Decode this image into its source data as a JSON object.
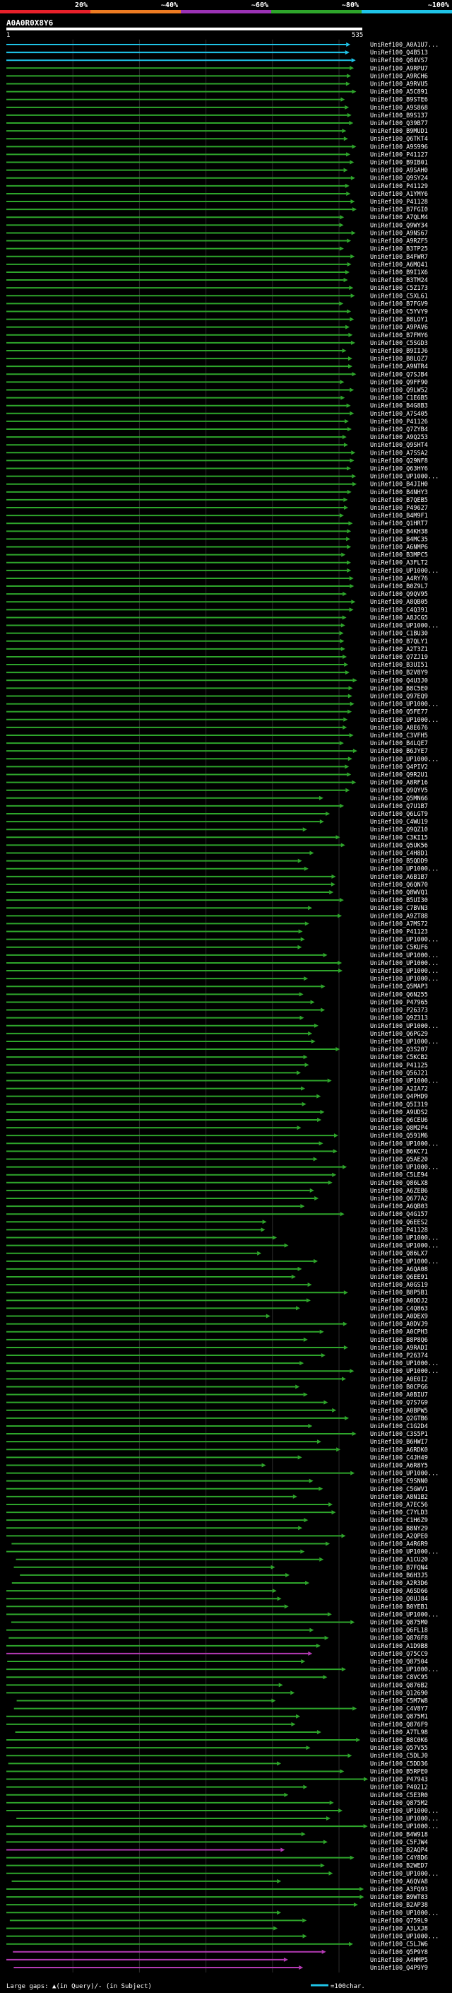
{
  "chart_data": {
    "type": "alignment-overview",
    "query_id": "A0A0R0X8Y6",
    "query_length": 535,
    "query_start_label": "1",
    "identity_scale": [
      {
        "label": "20%",
        "color": "#e8202a"
      },
      {
        "label": "~40%",
        "color": "#ee7b22"
      },
      {
        "label": "~60%",
        "color": "#9b32b5"
      },
      {
        "label": "~80%",
        "color": "#2ea52b"
      },
      {
        "label": "~100%",
        "color": "#1fc4e8"
      }
    ],
    "footer_left": "Large gaps: ▲(in Query)/- (in Subject)",
    "footer_right": "=100char.",
    "hits": [
      "UniRef100_A0A1U7...",
      "UniRef100_Q4B513",
      "UniRef100_Q84VS7",
      "UniRef100_A9RPU7",
      "UniRef100_A9RCH6",
      "UniRef100_A9RVU5",
      "UniRef100_A5C891",
      "UniRef100_B9STE6",
      "UniRef100_A9S868",
      "UniRef100_B9S137",
      "UniRef100_Q39B77",
      "UniRef100_B9MUD1",
      "UniRef100_Q6TKT4",
      "UniRef100_A9S996",
      "UniRef100_P41127",
      "UniRef100_B9IB01",
      "UniRef100_A9SAH0",
      "UniRef100_Q9SY24",
      "UniRef100_P41129",
      "UniRef100_A1YMY6",
      "UniRef100_P41128",
      "UniRef100_B7FGI0",
      "UniRef100_A7QLM4",
      "UniRef100_Q9WY34",
      "UniRef100_A9NS67",
      "UniRef100_A9RZF5",
      "UniRef100_B3TP25",
      "UniRef100_B4FWR7",
      "UniRef100_A6MQ41",
      "UniRef100_B9I1X6",
      "UniRef100_B3TM24",
      "UniRef100_C5Z173",
      "UniRef100_C5XL61",
      "UniRef100_B7FGV9",
      "UniRef100_C5YVY9",
      "UniRef100_B8LOY1",
      "UniRef100_A9PAV6",
      "UniRef100_B7FMY6",
      "UniRef100_C5SGD3",
      "UniRef100_B9IIJ6",
      "UniRef100_B8LQZ7",
      "UniRef100_A9NTR4",
      "UniRef100_Q7SJB4",
      "UniRef100_Q9FF90",
      "UniRef100_Q9LW52",
      "UniRef100_C1E6B5",
      "UniRef100_B4G8B3",
      "UniRef100_A7S405",
      "UniRef100_P41126",
      "UniRef100_Q7ZYB4",
      "UniRef100_A9Q253",
      "UniRef100_Q9SHT4",
      "UniRef100_A7SSA2",
      "UniRef100_Q29NF8",
      "UniRef100_Q63HY6",
      "UniRef100_UP1000...",
      "UniRef100_B4JIH0",
      "UniRef100_B4NHY3",
      "UniRef100_B7QEB5",
      "UniRef100_P49627",
      "UniRef100_B4M9F1",
      "UniRef100_Q1HRT7",
      "UniRef100_B4KH38",
      "UniRef100_B4MC35",
      "UniRef100_A6NMP6",
      "UniRef100_B3MPC5",
      "UniRef100_A3FLT2",
      "UniRef100_UP1000...",
      "UniRef100_A4RY76",
      "UniRef100_B0Z9L7",
      "UniRef100_Q9QV95",
      "UniRef100_A8QB05",
      "UniRef100_C4Q391",
      "UniRef100_A8JCG5",
      "UniRef100_UP1000...",
      "UniRef100_C1BU30",
      "UniRef100_B7QLY1",
      "UniRef100_A2T3Z1",
      "UniRef100_Q7ZJ19",
      "UniRef100_B3UI51",
      "UniRef100_B2V8Y9",
      "UniRef100_Q4U3J0",
      "UniRef100_B8C5E0",
      "UniRef100_Q97EQ9",
      "UniRef100_UP1000...",
      "UniRef100_Q5FE77",
      "UniRef100_UP1000...",
      "UniRef100_A8E676",
      "UniRef100_C3VFH5",
      "UniRef100_B4LQE7",
      "UniRef100_B6JYE7",
      "UniRef100_UP1000...",
      "UniRef100_Q4PIV2",
      "UniRef100_Q9R2U1",
      "UniRef100_A8RF16",
      "UniRef100_Q9QYV5",
      "UniRef100_Q5MN66",
      "UniRef100_Q7U1B7",
      "UniRef100_Q6LGT9",
      "UniRef100_C4WU19",
      "UniRef100_Q9QZ10",
      "UniRef100_C3KI15",
      "UniRef100_Q5UK56",
      "UniRef100_C4H8D1",
      "UniRef100_B5QDD9",
      "UniRef100_UP1000...",
      "UniRef100_A6B1B7",
      "UniRef100_Q6QN70",
      "UniRef100_Q8WVQ1",
      "UniRef100_B5UI30",
      "UniRef100_C7BVN3",
      "UniRef100_A9ZT88",
      "UniRef100_A7MS72",
      "UniRef100_P41123",
      "UniRef100_UP1000...",
      "UniRef100_C5KUF6",
      "UniRef100_UP1000...",
      "UniRef100_UP1000...",
      "UniRef100_UP1000...",
      "UniRef100_UP1000...",
      "UniRef100_Q5MAP3",
      "UniRef100_Q6N255",
      "UniRef100_P47965",
      "UniRef100_P26373",
      "UniRef100_Q9Z313",
      "UniRef100_UP1000...",
      "UniRef100_Q6PG29",
      "UniRef100_UP1000...",
      "UniRef100_Q3S207",
      "UniRef100_C5KCB2",
      "UniRef100_P41125",
      "UniRef100_Q56J21",
      "UniRef100_UP1000...",
      "UniRef100_A2IA72",
      "UniRef100_Q4PHD9",
      "UniRef100_Q5I319",
      "UniRef100_A9UDS2",
      "UniRef100_Q6CEU6",
      "UniRef100_Q8M2P4",
      "UniRef100_Q591M6",
      "UniRef100_UP1000...",
      "UniRef100_B6KC71",
      "UniRef100_Q5AE20",
      "UniRef100_UP1000...",
      "UniRef100_C5LE94",
      "UniRef100_Q86LX8",
      "UniRef100_A6ZEB6",
      "UniRef100_Q677A2",
      "UniRef100_A6QB03",
      "UniRef100_Q4G157",
      "UniRef100_Q6EES2",
      "UniRef100_P41128",
      "UniRef100_UP1000...",
      "UniRef100_UP1000...",
      "UniRef100_Q86LX7",
      "UniRef100_UP1000...",
      "UniRef100_A6QA08",
      "UniRef100_Q6EE91",
      "UniRef100_A0GS19",
      "UniRef100_B8P5B1",
      "UniRef100_A0DDJ2",
      "UniRef100_C4Q863",
      "UniRef100_A0DEX9",
      "UniRef100_A0DVJ9",
      "UniRef100_A0CPH3",
      "UniRef100_B8P8Q6",
      "UniRef100_A9RADI",
      "UniRef100_P26374",
      "UniRef100_UP1000...",
      "UniRef100_UP1000...",
      "UniRef100_A0E0I2",
      "UniRef100_B0CPG6",
      "UniRef100_A0BIU7",
      "UniRef100_Q7S7G9",
      "UniRef100_A0BPW5",
      "UniRef100_Q2GTB6",
      "UniRef100_C1G2D4",
      "UniRef100_C3S5P1",
      "UniRef100_B6HWI7",
      "UniRef100_A6RDK0",
      "UniRef100_C4JH49",
      "UniRef100_A6R8Y5",
      "UniRef100_UP1000...",
      "UniRef100_C9SNN0",
      "UniRef100_C5GWV1",
      "UniRef100_A8N1B2",
      "UniRef100_A7EC56",
      "UniRef100_C7YLD3",
      "UniRef100_C1H6Z9",
      "UniRef100_B8NY29",
      "UniRef100_A2QPE0",
      "UniRef100_A4R6R9",
      "UniRef100_UP1000...",
      "UniRef100_A1CU20",
      "UniRef100_B7FQN4",
      "UniRef100_B6H3J5",
      "UniRef100_A2R3D6",
      "UniRef100_A6SD66",
      "UniRef100_Q0UJ84",
      "UniRef100_B0YEB1",
      "UniRef100_UP1000...",
      "UniRef100_Q875M0",
      "UniRef100_Q6FL18",
      "UniRef100_Q876F8",
      "UniRef100_A1D9B8",
      "UniRef100_Q75CC9",
      "UniRef100_Q87504",
      "UniRef100_UP1000...",
      "UniRef100_C8VC95",
      "UniRef100_Q876B2",
      "UniRef100_Q12690",
      "UniRef100_C5M7W8",
      "UniRef100_C4V8Y7",
      "UniRef100_Q875M1",
      "UniRef100_Q876F9",
      "UniRef100_A7TL98",
      "UniRef100_B8C0K6",
      "UniRef100_Q57V55",
      "UniRef100_C5DLJ0",
      "UniRef100_C5DD36",
      "UniRef100_B5RPE0",
      "UniRef100_P47943",
      "UniRef100_P40212",
      "UniRef100_C5E3R0",
      "UniRef100_Q875M2",
      "UniRef100_UP1000...",
      "UniRef100_UP1000...",
      "UniRef100_UP1000...",
      "UniRef100_B4W918",
      "UniRef100_C5FJW4",
      "UniRef100_B2AQP4",
      "UniRef100_C4Y8D6",
      "UniRef100_B2WED7",
      "UniRef100_UP1000...",
      "UniRef100_A6QVA8",
      "UniRef100_A3FQ93",
      "UniRef100_B9WT83",
      "UniRef100_B2AP38",
      "UniRef100_UP1000...",
      "UniRef100_Q759L9",
      "UniRef100_A3LXJ8",
      "UniRef100_UP1000...",
      "UniRef100_C5LJW6",
      "UniRef100_Q5P9Y8",
      "UniRef100_A4HMP5",
      "UniRef100_Q4P9Y9"
    ]
  }
}
